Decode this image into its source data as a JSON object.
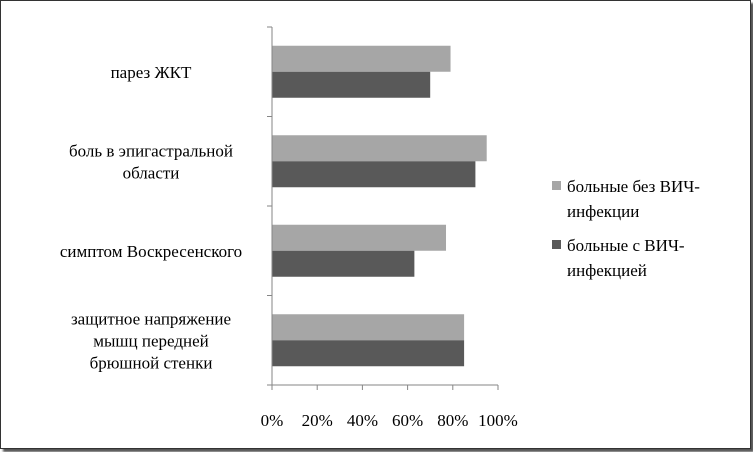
{
  "chart_data": {
    "type": "bar",
    "orientation": "horizontal",
    "categories": [
      [
        "парез ЖКТ"
      ],
      [
        "боль в эпигастральной",
        "области"
      ],
      [
        "симптом Воскресенского"
      ],
      [
        "защитное напряжение",
        "мышц передней",
        "брюшной стенки"
      ]
    ],
    "series": [
      {
        "name": [
          "больные без ВИЧ-",
          "инфекции"
        ],
        "color": "#a6a6a6",
        "values": [
          79,
          95,
          77,
          85
        ]
      },
      {
        "name": [
          "больные с ВИЧ-",
          "инфекцией"
        ],
        "color": "#595959",
        "values": [
          70,
          90,
          63,
          85
        ]
      }
    ],
    "xlim": [
      0,
      100
    ],
    "x_ticks": [
      "0%",
      "20%",
      "40%",
      "60%",
      "80%",
      "100%"
    ],
    "grid": false,
    "legend": "right"
  }
}
